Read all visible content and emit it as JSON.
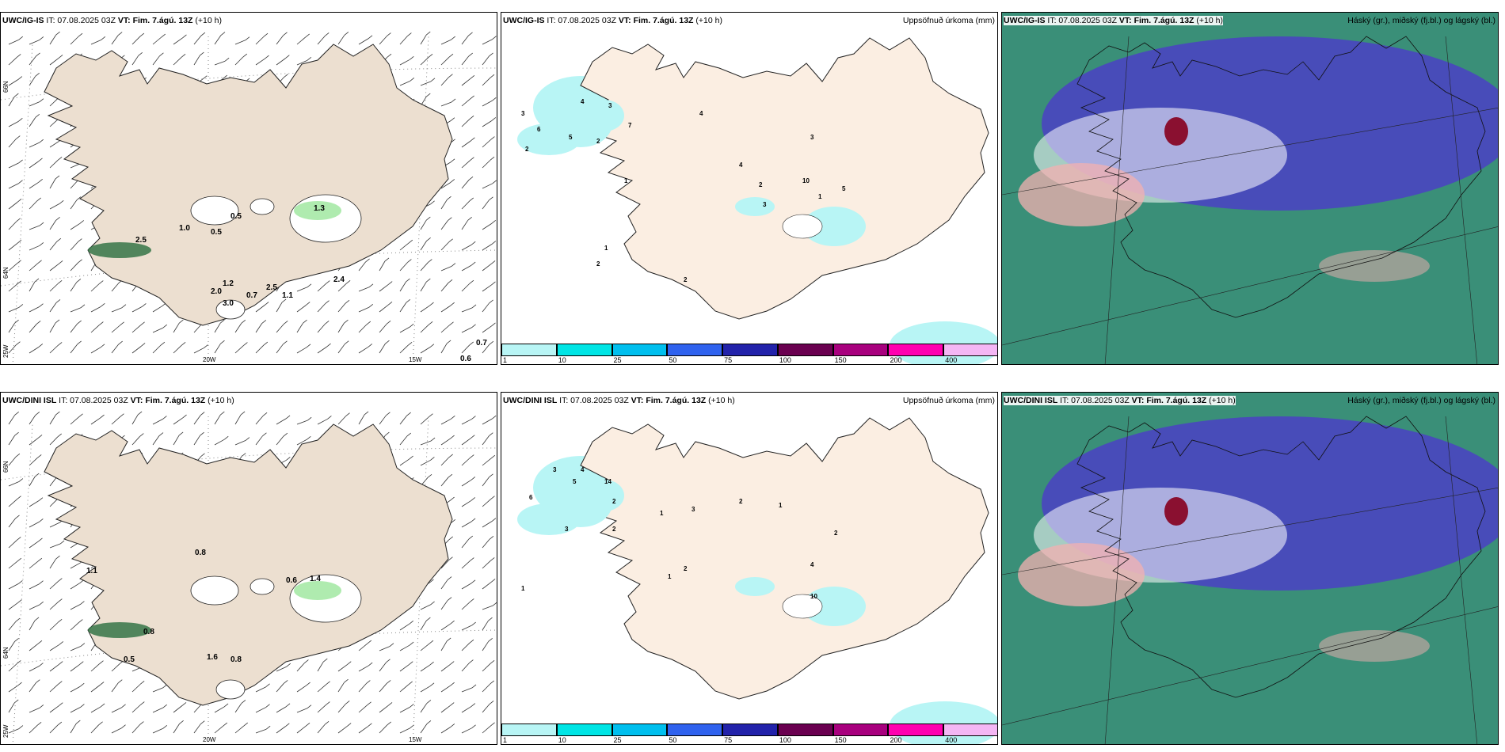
{
  "panels": [
    {
      "model": "UWC/IG-IS",
      "it": "IT: 07.08.2025 03Z",
      "vt": "VT: Fim. 7.ágú. 13Z",
      "lead": "(+10 h)",
      "right": ""
    },
    {
      "model": "UWC/IG-IS",
      "it": "IT: 07.08.2025 03Z",
      "vt": "VT: Fim. 7.ágú. 13Z",
      "lead": "(+10 h)",
      "right": "Uppsöfnuð úrkoma (mm)"
    },
    {
      "model": "UWC/IG-IS",
      "it": "IT: 07.08.2025 03Z",
      "vt": "VT: Fim. 7.ágú. 13Z",
      "lead": "(+10 h)",
      "right": "Háský (gr.), miðský (fj.bl.) og lágský (bl.)"
    },
    {
      "model": "UWC/DINI ISL",
      "it": "IT: 07.08.2025 03Z",
      "vt": "VT: Fim. 7.ágú. 13Z",
      "lead": "(+10 h)",
      "right": ""
    },
    {
      "model": "UWC/DINI ISL",
      "it": "IT: 07.08.2025 03Z",
      "vt": "VT: Fim. 7.ágú. 13Z",
      "lead": "(+10 h)",
      "right": "Uppsöfnuð úrkoma (mm)"
    },
    {
      "model": "UWC/DINI ISL",
      "it": "IT: 07.08.2025 03Z",
      "vt": "VT: Fim. 7.ágú. 13Z",
      "lead": "(+10 h)",
      "right": "Háský (gr.), miðský (fj.bl.) og lágský (bl.)"
    }
  ],
  "grid_labels": {
    "lat66": "66N",
    "lat64": "64N",
    "lon25": "25W",
    "lon20": "20W",
    "lon15": "15W"
  },
  "colorbar": {
    "labels": [
      "1",
      "10",
      "25",
      "50",
      "75",
      "100",
      "150",
      "200",
      "400"
    ],
    "colors": [
      "#b8f5f5",
      "#00e5e5",
      "#00bfee",
      "#2f62ee",
      "#2222aa",
      "#6a0050",
      "#a8007e",
      "#ff00b0",
      "#f4b6f4"
    ]
  },
  "colors": {
    "land": "#ecdfd0",
    "land_precip": "#fbeee2",
    "precip_light": "#b8f5f5",
    "cloud_low": "#3a8f78",
    "cloud_mid": "#4a45c0",
    "cloud_high": "#f3b0b0"
  },
  "wind_values_top": [
    "0.5",
    "0.5",
    "1.0",
    "1.3",
    "2.5",
    "2.0",
    "3.0",
    "0.7",
    "2.5",
    "2.4",
    "1.2",
    "1.1",
    "0.7",
    "0.6"
  ],
  "wind_values_bottom": [
    "0.8",
    "1.1",
    "0.6",
    "1.4",
    "0.8",
    "0.5",
    "1.6",
    "0.8"
  ],
  "precip_values_top": [
    "2",
    "3",
    "6",
    "5",
    "4",
    "3",
    "7",
    "2",
    "1",
    "4",
    "1",
    "2",
    "3",
    "4",
    "10",
    "5",
    "3",
    "2",
    "1",
    "2"
  ],
  "precip_values_bottom": [
    "3",
    "4",
    "6",
    "5",
    "2",
    "14",
    "1",
    "3",
    "2",
    "1",
    "3",
    "2",
    "1",
    "2",
    "10",
    "1",
    "2",
    "4"
  ]
}
